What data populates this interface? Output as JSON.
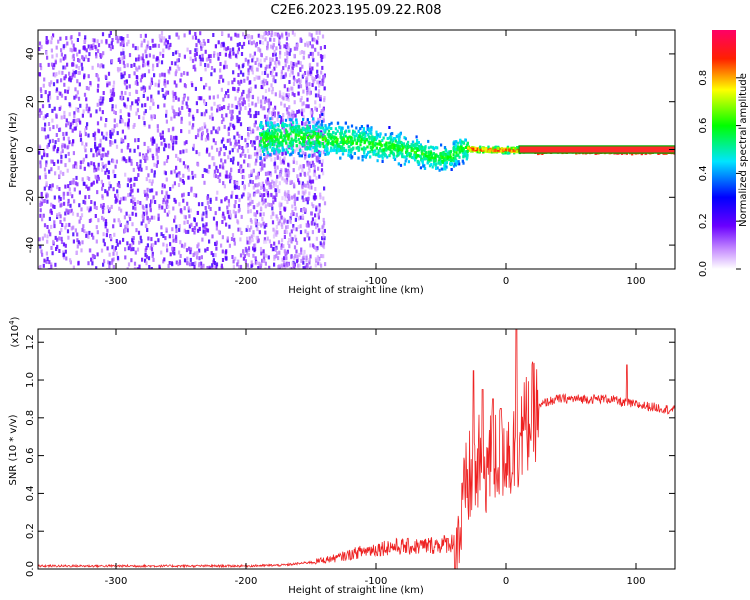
{
  "title": "C2E6.2023.195.09.22.R08",
  "chart_data": [
    {
      "type": "heatmap",
      "xlabel": "Height of straight line (km)",
      "ylabel": "Frequency (Hz)",
      "xlim": [
        -360,
        130
      ],
      "ylim": [
        -50,
        50
      ],
      "x_ticks": [
        -300,
        -200,
        -100,
        0,
        100
      ],
      "y_ticks": [
        -40,
        -20,
        0,
        20,
        40
      ],
      "grid": false,
      "colorbar": {
        "label": "Normalized spectral amplitude",
        "range": [
          0,
          1
        ],
        "ticks": [
          0.0,
          0.2,
          0.4,
          0.6,
          0.8
        ],
        "colors": [
          "#ffffff",
          "#9b30ff",
          "#0000ff",
          "#00e5ff",
          "#00ff00",
          "#ffff00",
          "#ff0000",
          "#ff0066"
        ]
      },
      "trace": {
        "description_points_x": [
          -360,
          -160,
          -120,
          -80,
          -60,
          -45,
          -35,
          -20,
          0,
          130
        ],
        "description_points_y": [
          0,
          6,
          4,
          1,
          -2,
          -3,
          1,
          0.5,
          0.3,
          0
        ]
      }
    },
    {
      "type": "line",
      "xlabel": "Height of straight line (km)",
      "ylabel": "SNR (10 * v/v)",
      "yscale_label_base": "(x10",
      "yscale_label_exp": "4",
      "yscale_label_close": ")",
      "xlim": [
        -360,
        130
      ],
      "ylim": [
        0,
        1.27
      ],
      "x_ticks": [
        -300,
        -200,
        -100,
        0,
        100
      ],
      "y_ticks": [
        0.0,
        0.2,
        0.4,
        0.6,
        0.8,
        1.0,
        1.2
      ],
      "color": "#ee2222",
      "series": [
        {
          "x": [
            -360,
            -300,
            -250,
            -200,
            -170,
            -150,
            -130,
            -110,
            -90,
            -70,
            -50,
            -40,
            -35,
            -30,
            -25,
            -20,
            -15,
            -10,
            -5,
            0,
            5,
            10,
            15,
            20,
            30,
            40,
            60,
            80,
            90,
            100,
            110,
            120,
            130
          ],
          "values": [
            0.01,
            0.01,
            0.01,
            0.01,
            0.015,
            0.03,
            0.05,
            0.08,
            0.1,
            0.1,
            0.11,
            0.12,
            0.2,
            0.45,
            0.5,
            0.55,
            0.55,
            0.58,
            0.6,
            0.65,
            0.6,
            0.7,
            0.75,
            0.82,
            0.88,
            0.9,
            0.9,
            0.9,
            0.88,
            0.87,
            0.86,
            0.85,
            0.84
          ]
        }
      ],
      "spikes_x": [
        -25,
        -18,
        -10,
        -4,
        8,
        93
      ],
      "spikes_y": [
        1.05,
        0.95,
        0.9,
        0.85,
        1.27,
        1.08
      ]
    }
  ]
}
